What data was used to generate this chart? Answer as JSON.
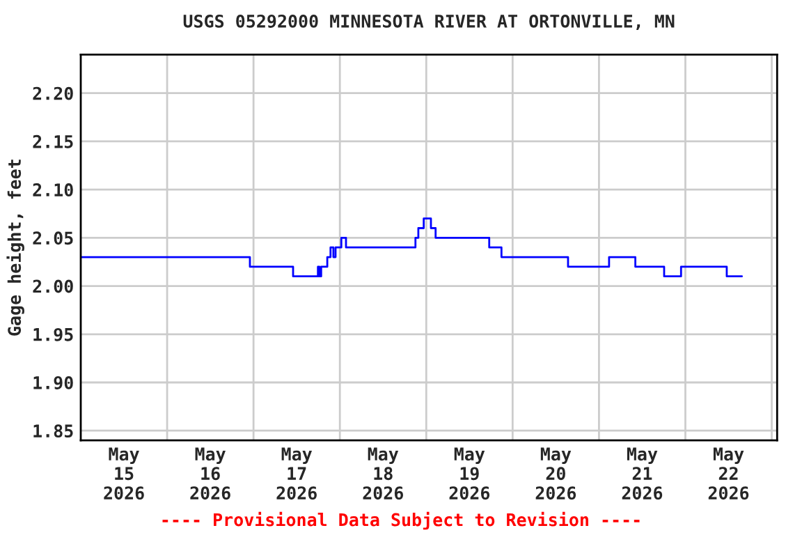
{
  "chart_data": {
    "type": "step",
    "title": "USGS 05292000 MINNESOTA RIVER AT ORTONVILLE, MN",
    "ylabel": "Gage height, feet",
    "annotations": [
      "---- Provisional Data Subject to Revision ----"
    ],
    "x": [
      "2026-05-15T00:00",
      "2026-05-16T23:00",
      "2026-05-17T11:00",
      "2026-05-17T17:54",
      "2026-05-17T18:18",
      "2026-05-17T18:48",
      "2026-05-17T20:30",
      "2026-05-17T21:24",
      "2026-05-17T22:12",
      "2026-05-17T22:48",
      "2026-05-18T00:24",
      "2026-05-18T01:42",
      "2026-05-18T21:00",
      "2026-05-18T21:48",
      "2026-05-18T23:18",
      "2026-05-19T01:18",
      "2026-05-19T02:36",
      "2026-05-19T17:30",
      "2026-05-19T20:54",
      "2026-05-20T15:24",
      "2026-05-21T02:48",
      "2026-05-21T10:06",
      "2026-05-21T18:06",
      "2026-05-21T22:48",
      "2026-05-22T11:30",
      "2026-05-22T15:42"
    ],
    "series": [
      {
        "color": "#0000ff",
        "values": [
          2.03,
          2.02,
          2.01,
          2.02,
          2.01,
          2.02,
          2.03,
          2.04,
          2.03,
          2.04,
          2.05,
          2.04,
          2.05,
          2.06,
          2.07,
          2.06,
          2.05,
          2.04,
          2.03,
          2.02,
          2.03,
          2.02,
          2.01,
          2.02,
          2.01,
          2.01
        ]
      }
    ],
    "xlim": [
      "2026-05-15T00:00",
      "2026-05-23T01:30"
    ],
    "xticks": [
      {
        "value": "2026-05-15T12:00",
        "label": "May\n15\n2026"
      },
      {
        "value": "2026-05-16T12:00",
        "label": "May\n16\n2026"
      },
      {
        "value": "2026-05-17T12:00",
        "label": "May\n17\n2026"
      },
      {
        "value": "2026-05-18T12:00",
        "label": "May\n18\n2026"
      },
      {
        "value": "2026-05-19T12:00",
        "label": "May\n19\n2026"
      },
      {
        "value": "2026-05-20T12:00",
        "label": "May\n20\n2026"
      },
      {
        "value": "2026-05-21T12:00",
        "label": "May\n21\n2026"
      },
      {
        "value": "2026-05-22T12:00",
        "label": "May\n22\n2026"
      },
      {
        "value": "2026-05-16T00:00",
        "label": null
      },
      {
        "value": "2026-05-17T00:00",
        "label": null
      },
      {
        "value": "2026-05-18T00:00",
        "label": null
      },
      {
        "value": "2026-05-19T00:00",
        "label": null
      },
      {
        "value": "2026-05-20T00:00",
        "label": null
      },
      {
        "value": "2026-05-21T00:00",
        "label": null
      },
      {
        "value": "2026-05-22T00:00",
        "label": null
      },
      {
        "value": "2026-05-23T00:00",
        "label": null
      }
    ],
    "ylim": [
      1.84,
      2.24
    ],
    "yticks": [
      {
        "value": 1.85,
        "label": "1.85"
      },
      {
        "value": 1.9,
        "label": "1.90"
      },
      {
        "value": 1.95,
        "label": "1.95"
      },
      {
        "value": 2.0,
        "label": "2.00"
      },
      {
        "value": 2.05,
        "label": "2.05"
      },
      {
        "value": 2.1,
        "label": "2.10"
      },
      {
        "value": 2.15,
        "label": "2.15"
      },
      {
        "value": 2.2,
        "label": "2.20"
      }
    ],
    "grid": true
  }
}
